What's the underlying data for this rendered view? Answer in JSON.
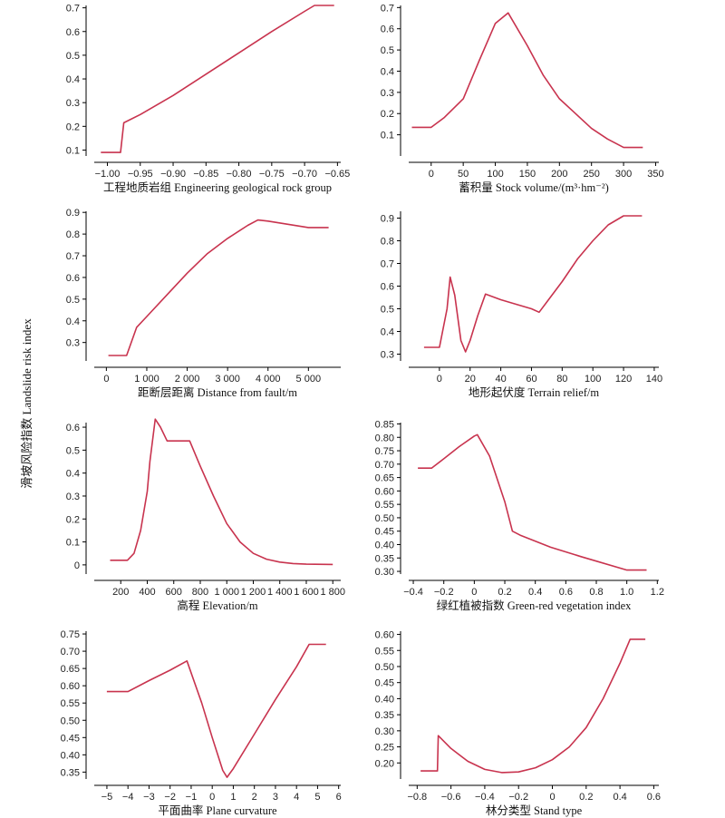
{
  "figure": {
    "shared_ylabel": "滑坡风险指数 Landslide risk index",
    "line_color": "#c8334e"
  },
  "chart_data": [
    {
      "type": "line",
      "xlabel": "工程地质岩组 Engineering geological rock group",
      "xlim": [
        -1.02,
        -0.645
      ],
      "ylim": [
        0.075,
        0.71
      ],
      "xticks": [
        -1.0,
        -0.95,
        -0.9,
        -0.85,
        -0.8,
        -0.75,
        -0.7,
        -0.65
      ],
      "xtick_labels": [
        "−1.00",
        "−0.95",
        "−0.90",
        "−0.85",
        "−0.80",
        "−0.75",
        "−0.70",
        "−0.65"
      ],
      "yticks": [
        0.1,
        0.2,
        0.3,
        0.4,
        0.5,
        0.6,
        0.7
      ],
      "ytick_labels": [
        "0.1",
        "0.2",
        "0.3",
        "0.4",
        "0.5",
        "0.6",
        "0.7"
      ],
      "series": [
        {
          "x": [
            -1.01,
            -0.98,
            -0.975,
            -0.95,
            -0.9,
            -0.85,
            -0.8,
            -0.75,
            -0.7,
            -0.685,
            -0.655
          ],
          "y": [
            0.09,
            0.09,
            0.215,
            0.25,
            0.33,
            0.42,
            0.51,
            0.6,
            0.685,
            0.71,
            0.71
          ]
        }
      ]
    },
    {
      "type": "line",
      "xlabel": "蓄积量 Stock volume/(m³·hm⁻²)",
      "xlim": [
        -35,
        355
      ],
      "ylim": [
        0.0,
        0.71
      ],
      "xticks": [
        0,
        50,
        100,
        150,
        200,
        250,
        300,
        350
      ],
      "xtick_labels": [
        "0",
        "50",
        "100",
        "150",
        "200",
        "250",
        "300",
        "350"
      ],
      "yticks": [
        0.1,
        0.2,
        0.3,
        0.4,
        0.5,
        0.6,
        0.7
      ],
      "ytick_labels": [
        "0.1",
        "0.2",
        "0.3",
        "0.4",
        "0.5",
        "0.6",
        "0.7"
      ],
      "series": [
        {
          "x": [
            -30,
            0,
            20,
            50,
            75,
            100,
            120,
            150,
            175,
            200,
            225,
            250,
            275,
            300,
            330
          ],
          "y": [
            0.135,
            0.135,
            0.18,
            0.27,
            0.45,
            0.625,
            0.675,
            0.52,
            0.38,
            0.27,
            0.2,
            0.13,
            0.08,
            0.04,
            0.04
          ]
        }
      ]
    },
    {
      "type": "line",
      "xlabel": "距断层距离 Distance from fault/m",
      "xlim": [
        -300,
        5800
      ],
      "ylim": [
        0.215,
        0.905
      ],
      "xticks": [
        0,
        1000,
        2000,
        3000,
        4000,
        5000
      ],
      "xtick_labels": [
        "0",
        "1 000",
        "2 000",
        "3 000",
        "4 000",
        "5 000"
      ],
      "yticks": [
        0.3,
        0.4,
        0.5,
        0.6,
        0.7,
        0.8,
        0.9
      ],
      "ytick_labels": [
        "0.3",
        "0.4",
        "0.5",
        "0.6",
        "0.7",
        "0.8",
        "0.9"
      ],
      "series": [
        {
          "x": [
            50,
            500,
            750,
            1000,
            1500,
            2000,
            2500,
            3000,
            3500,
            3750,
            4000,
            5000,
            5500
          ],
          "y": [
            0.24,
            0.24,
            0.37,
            0.42,
            0.52,
            0.62,
            0.71,
            0.78,
            0.84,
            0.865,
            0.86,
            0.83,
            0.83
          ]
        }
      ]
    },
    {
      "type": "line",
      "xlabel": "地形起伏度 Terrain relief/m",
      "xlim": [
        -20,
        143
      ],
      "ylim": [
        0.27,
        0.93
      ],
      "xticks": [
        0,
        20,
        40,
        60,
        80,
        100,
        120,
        140
      ],
      "xtick_labels": [
        "0",
        "20",
        "40",
        "60",
        "80",
        "100",
        "120",
        "140"
      ],
      "yticks": [
        0.3,
        0.4,
        0.5,
        0.6,
        0.7,
        0.8,
        0.9
      ],
      "ytick_labels": [
        "0.3",
        "0.4",
        "0.5",
        "0.6",
        "0.7",
        "0.8",
        "0.9"
      ],
      "series": [
        {
          "x": [
            -10,
            0,
            5,
            7,
            10,
            14,
            17,
            20,
            25,
            30,
            40,
            50,
            60,
            65,
            70,
            80,
            90,
            100,
            110,
            120,
            132
          ],
          "y": [
            0.33,
            0.33,
            0.5,
            0.64,
            0.56,
            0.36,
            0.31,
            0.36,
            0.47,
            0.565,
            0.54,
            0.52,
            0.5,
            0.485,
            0.53,
            0.62,
            0.72,
            0.8,
            0.87,
            0.91,
            0.91
          ]
        }
      ]
    },
    {
      "type": "line",
      "xlabel": "高程 Elevation/m",
      "xlim": [
        0,
        1860
      ],
      "ylim": [
        -0.04,
        0.62
      ],
      "xticks": [
        200,
        400,
        600,
        800,
        1000,
        1200,
        1400,
        1600,
        1800
      ],
      "xtick_labels": [
        "200",
        "400",
        "600",
        "800",
        "1 000",
        "1 200",
        "1 400",
        "1 600",
        "1 800"
      ],
      "yticks": [
        0,
        0.1,
        0.2,
        0.3,
        0.4,
        0.5,
        0.6
      ],
      "ytick_labels": [
        "0",
        "0.1",
        "0.2",
        "0.3",
        "0.4",
        "0.5",
        "0.6"
      ],
      "series": [
        {
          "x": [
            120,
            250,
            300,
            350,
            400,
            420,
            460,
            500,
            550,
            650,
            720,
            800,
            900,
            1000,
            1100,
            1200,
            1300,
            1400,
            1500,
            1600,
            1800
          ],
          "y": [
            0.02,
            0.02,
            0.05,
            0.15,
            0.32,
            0.45,
            0.635,
            0.6,
            0.54,
            0.54,
            0.54,
            0.43,
            0.3,
            0.18,
            0.1,
            0.05,
            0.025,
            0.012,
            0.006,
            0.003,
            0.002
          ]
        }
      ]
    },
    {
      "type": "line",
      "xlabel": "绿红植被指数 Green-red vegetation index",
      "xlim": [
        -0.43,
        1.21
      ],
      "ylim": [
        0.29,
        0.855
      ],
      "xticks": [
        -0.4,
        -0.2,
        0,
        0.2,
        0.4,
        0.6,
        0.8,
        1.0,
        1.2
      ],
      "xtick_labels": [
        "−0.4",
        "−0.2",
        "0",
        "0.2",
        "0.4",
        "0.6",
        "0.8",
        "1.0",
        "1.2"
      ],
      "yticks": [
        0.3,
        0.35,
        0.4,
        0.45,
        0.5,
        0.55,
        0.6,
        0.65,
        0.7,
        0.75,
        0.8,
        0.85
      ],
      "ytick_labels": [
        "0.30",
        "0.35",
        "0.40",
        "0.45",
        "0.50",
        "0.55",
        "0.60",
        "0.65",
        "0.70",
        "0.75",
        "0.80",
        "0.85"
      ],
      "series": [
        {
          "x": [
            -0.37,
            -0.28,
            -0.2,
            -0.1,
            0.0,
            0.02,
            0.1,
            0.2,
            0.25,
            0.3,
            0.5,
            0.7,
            1.0,
            1.13
          ],
          "y": [
            0.685,
            0.685,
            0.72,
            0.765,
            0.805,
            0.81,
            0.73,
            0.56,
            0.45,
            0.435,
            0.39,
            0.355,
            0.305,
            0.305
          ]
        }
      ]
    },
    {
      "type": "line",
      "xlabel": "平面曲率 Plane curvature",
      "xlim": [
        -5.6,
        6.1
      ],
      "ylim": [
        0.33,
        0.758
      ],
      "xticks": [
        -5,
        -4,
        -3,
        -2,
        -1,
        0,
        1,
        2,
        3,
        4,
        5,
        6
      ],
      "xtick_labels": [
        "−5",
        "−4",
        "−3",
        "−2",
        "−1",
        "0",
        "1",
        "2",
        "3",
        "4",
        "5",
        "6"
      ],
      "yticks": [
        0.35,
        0.4,
        0.45,
        0.5,
        0.55,
        0.6,
        0.65,
        0.7,
        0.75
      ],
      "ytick_labels": [
        "0.35",
        "0.40",
        "0.45",
        "0.50",
        "0.55",
        "0.60",
        "0.65",
        "0.70",
        "0.75"
      ],
      "series": [
        {
          "x": [
            -5.0,
            -4.0,
            -3.0,
            -2.0,
            -1.2,
            -0.5,
            0.0,
            0.5,
            0.7,
            1.0,
            2.0,
            3.0,
            4.0,
            4.6,
            5.4
          ],
          "y": [
            0.583,
            0.583,
            0.615,
            0.645,
            0.672,
            0.55,
            0.45,
            0.355,
            0.335,
            0.36,
            0.46,
            0.56,
            0.655,
            0.72,
            0.72
          ]
        }
      ]
    },
    {
      "type": "line",
      "xlabel": "林分类型 Stand type",
      "xlim": [
        -0.85,
        0.63
      ],
      "ylim": [
        0.15,
        0.61
      ],
      "xticks": [
        -0.8,
        -0.6,
        -0.4,
        -0.2,
        0,
        0.2,
        0.4,
        0.6
      ],
      "xtick_labels": [
        "−0.8",
        "−0.6",
        "−0.4",
        "−0.2",
        "0",
        "0.2",
        "0.4",
        "0.6"
      ],
      "yticks": [
        0.2,
        0.25,
        0.3,
        0.35,
        0.4,
        0.45,
        0.5,
        0.55,
        0.6
      ],
      "ytick_labels": [
        "0.20",
        "0.25",
        "0.30",
        "0.35",
        "0.40",
        "0.45",
        "0.50",
        "0.55",
        "0.60"
      ],
      "series": [
        {
          "x": [
            -0.78,
            -0.68,
            -0.675,
            -0.6,
            -0.5,
            -0.4,
            -0.3,
            -0.2,
            -0.1,
            0.0,
            0.1,
            0.2,
            0.3,
            0.4,
            0.46,
            0.55
          ],
          "y": [
            0.175,
            0.175,
            0.285,
            0.245,
            0.205,
            0.18,
            0.17,
            0.172,
            0.185,
            0.21,
            0.25,
            0.31,
            0.4,
            0.51,
            0.585,
            0.585
          ]
        }
      ]
    }
  ]
}
